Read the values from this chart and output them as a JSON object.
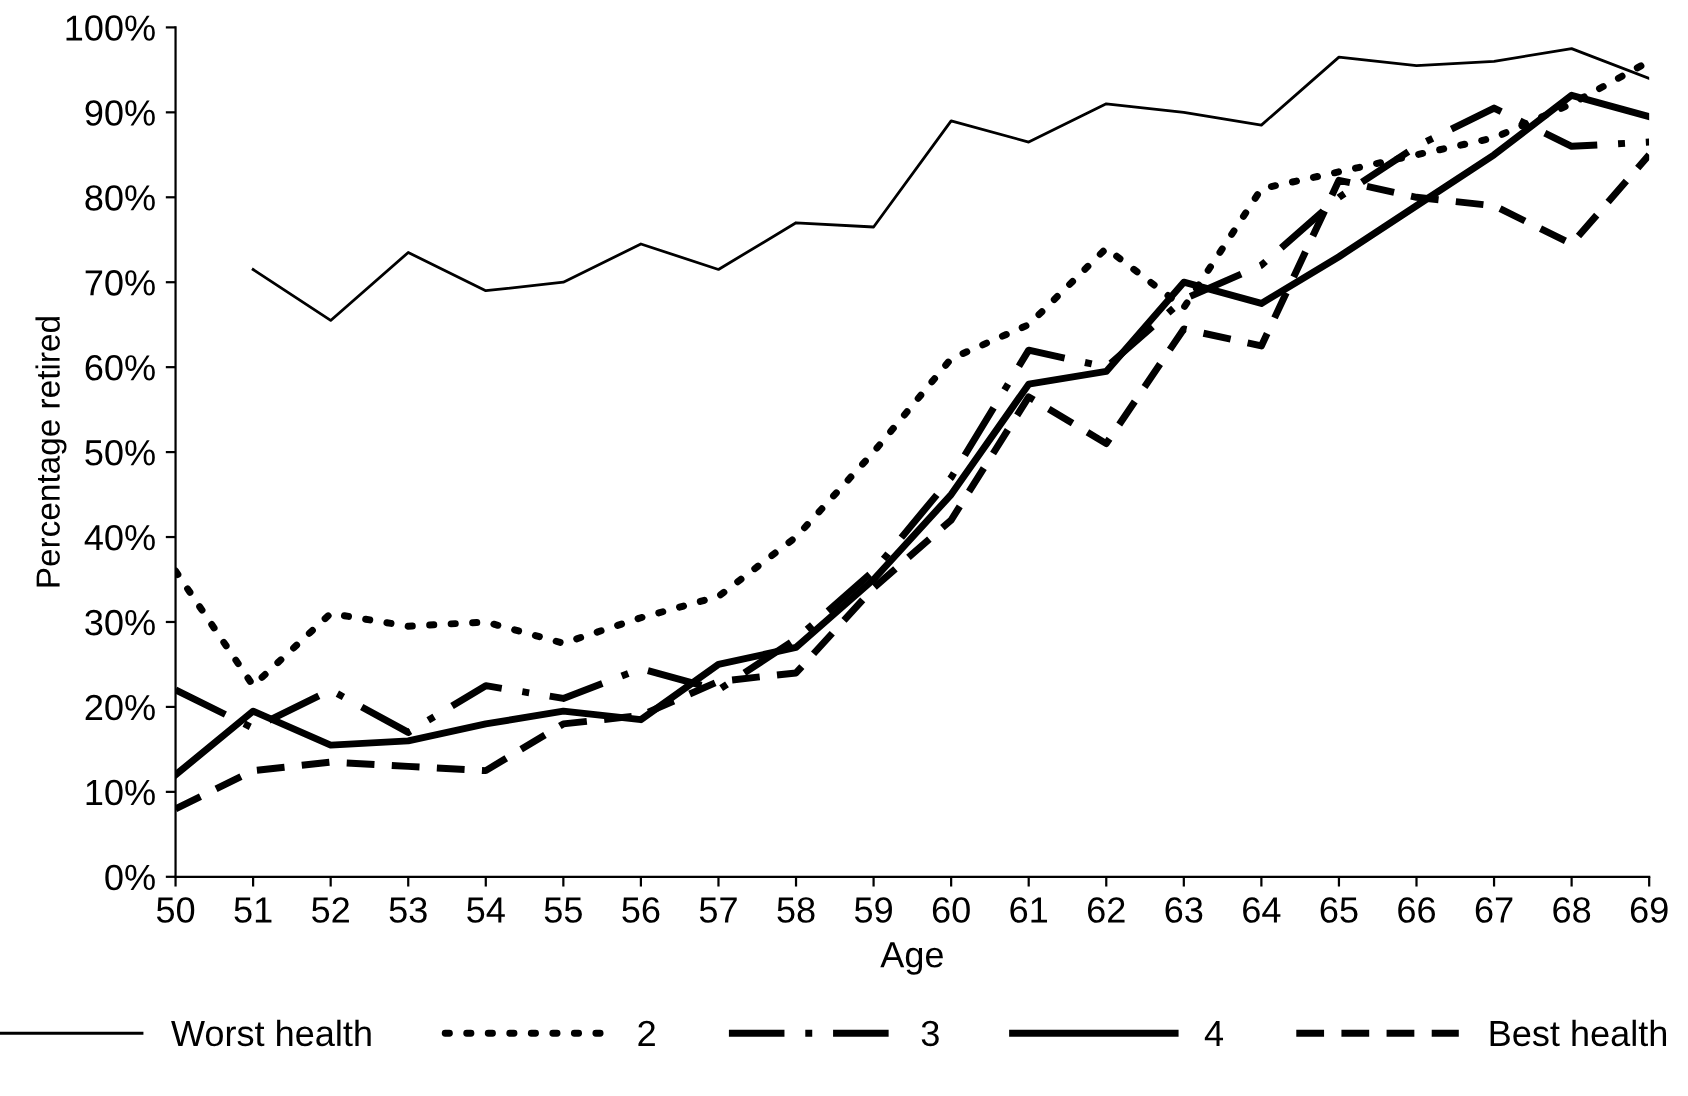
{
  "chart_data": {
    "type": "line",
    "xlabel": "Age",
    "ylabel": "Percentage retired",
    "categories": [
      "50",
      "51",
      "52",
      "53",
      "54",
      "55",
      "56",
      "57",
      "58",
      "59",
      "60",
      "61",
      "62",
      "63",
      "64",
      "65",
      "66",
      "67",
      "68",
      "69"
    ],
    "series": [
      {
        "name": "Worst health",
        "color": "#000000",
        "line_style": "solid",
        "values": [
          null,
          71.5,
          65.5,
          73.5,
          69,
          70,
          74.5,
          71.5,
          77,
          76.5,
          89,
          86.5,
          91,
          90,
          88.5,
          96.5,
          95.5,
          96,
          97.5,
          94
        ]
      },
      {
        "name": "2",
        "color": "#000000",
        "line_style": "dotted",
        "values": [
          36,
          22.5,
          31,
          29.5,
          30,
          27.5,
          30.5,
          33,
          40,
          50,
          61,
          65,
          74,
          67,
          81,
          83,
          85,
          87,
          91,
          96
        ]
      },
      {
        "name": "3",
        "color": "#000000",
        "line_style": "dashdot",
        "values": [
          22,
          17.5,
          22,
          17,
          22.5,
          21,
          24.5,
          22,
          28,
          36,
          47,
          62,
          60,
          68,
          72,
          80,
          86,
          90.5,
          86,
          86.5
        ]
      },
      {
        "name": "4",
        "color": "#000000",
        "line_style": "solid",
        "values": [
          12,
          19.5,
          15.5,
          16,
          18,
          19.5,
          18.5,
          25,
          27,
          35,
          45,
          58,
          59.5,
          70,
          67.5,
          73,
          79,
          85,
          92,
          89.5
        ]
      },
      {
        "name": "Best health",
        "color": "#000000",
        "line_style": "dashed",
        "values": [
          8,
          12.5,
          13.5,
          13,
          12.5,
          18,
          19,
          23,
          24,
          34,
          42,
          56.5,
          51,
          64.5,
          62.5,
          82,
          80,
          79,
          74.5,
          85
        ]
      }
    ],
    "ylim": [
      0,
      100
    ],
    "yticks": [
      {
        "value": 0,
        "label": "0%"
      },
      {
        "value": 10,
        "label": "10%"
      },
      {
        "value": 20,
        "label": "20%"
      },
      {
        "value": 30,
        "label": "30%"
      },
      {
        "value": 40,
        "label": "40%"
      },
      {
        "value": 50,
        "label": "50%"
      },
      {
        "value": 60,
        "label": "60%"
      },
      {
        "value": 70,
        "label": "70%"
      },
      {
        "value": 80,
        "label": "80%"
      },
      {
        "value": 90,
        "label": "90%"
      },
      {
        "value": 100,
        "label": "100%"
      }
    ],
    "grid": false,
    "legend": "bottom",
    "marker": "none"
  }
}
